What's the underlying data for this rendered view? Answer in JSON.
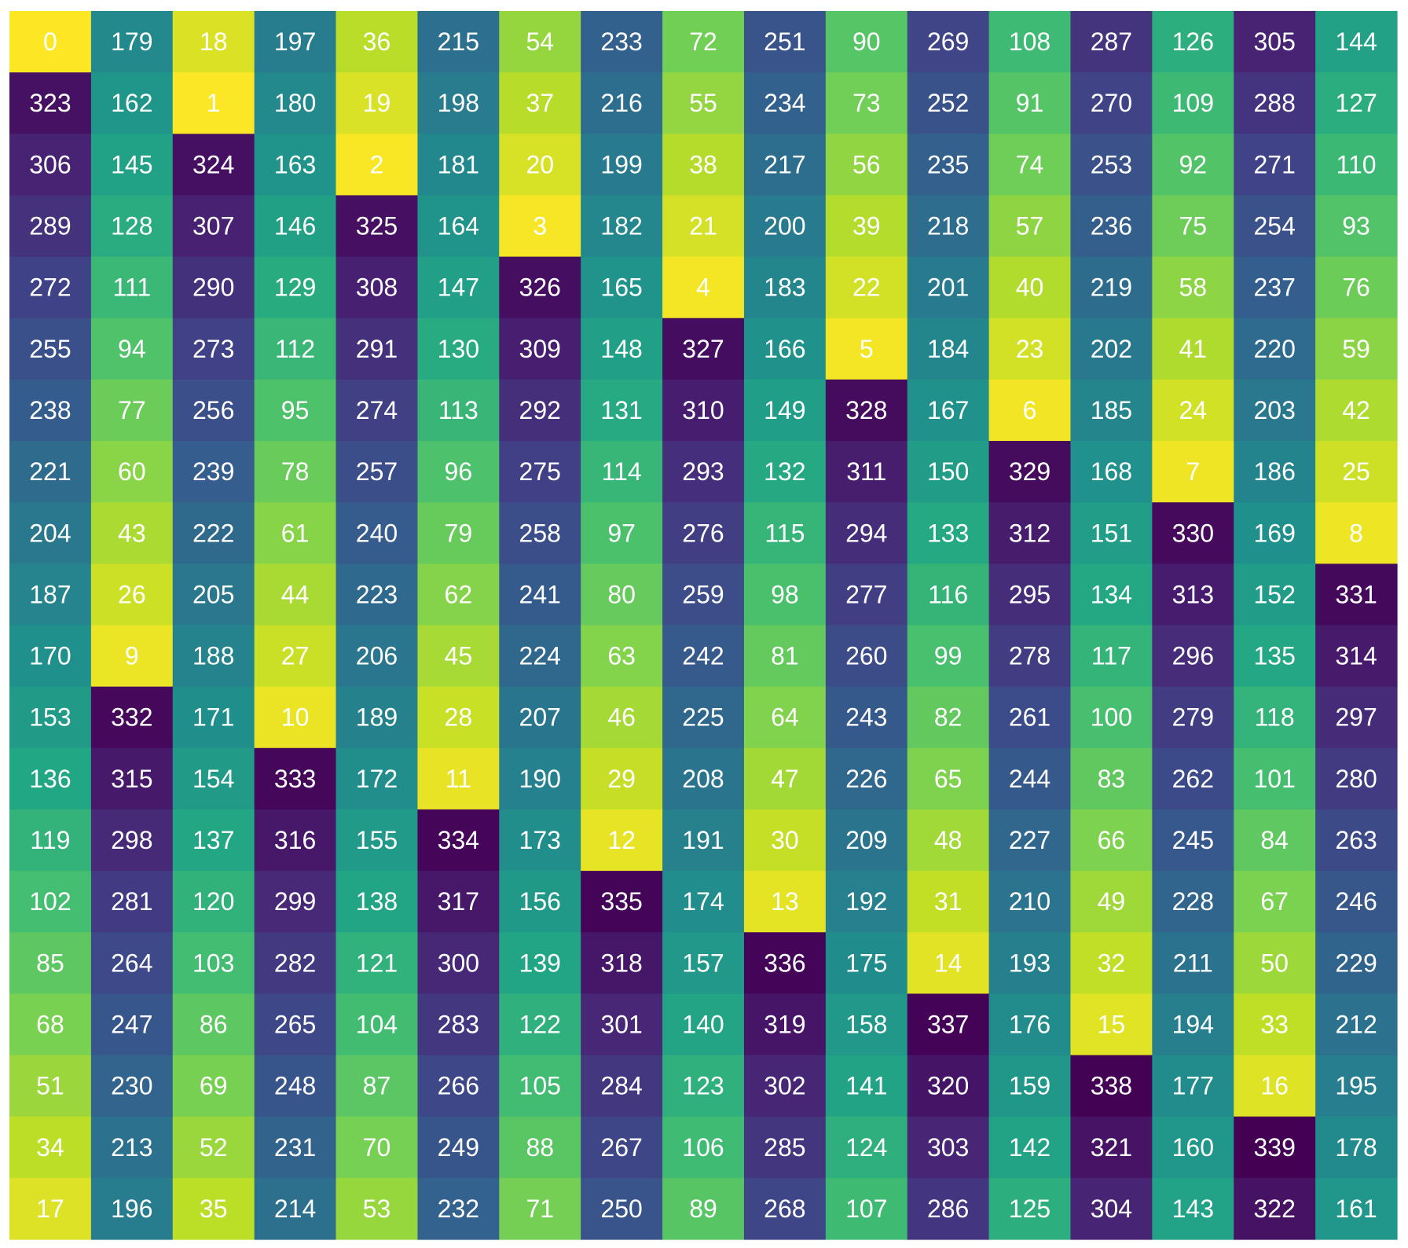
{
  "chart_data": {
    "type": "heatmap",
    "title": "",
    "xlabel": "",
    "ylabel": "",
    "colormap": "viridis_r",
    "value_range": [
      0,
      339
    ],
    "annotations": true,
    "grid": false,
    "legend": "none",
    "rows": 20,
    "cols": 17,
    "values": [
      [
        0,
        179,
        18,
        197,
        36,
        215,
        54,
        233,
        72,
        251,
        90,
        269,
        108,
        287,
        126,
        305,
        144
      ],
      [
        323,
        162,
        1,
        180,
        19,
        198,
        37,
        216,
        55,
        234,
        73,
        252,
        91,
        270,
        109,
        288,
        127
      ],
      [
        306,
        145,
        324,
        163,
        2,
        181,
        20,
        199,
        38,
        217,
        56,
        235,
        74,
        253,
        92,
        271,
        110
      ],
      [
        289,
        128,
        307,
        146,
        325,
        164,
        3,
        182,
        21,
        200,
        39,
        218,
        57,
        236,
        75,
        254,
        93
      ],
      [
        272,
        111,
        290,
        129,
        308,
        147,
        326,
        165,
        4,
        183,
        22,
        201,
        40,
        219,
        58,
        237,
        76
      ],
      [
        255,
        94,
        273,
        112,
        291,
        130,
        309,
        148,
        327,
        166,
        5,
        184,
        23,
        202,
        41,
        220,
        59
      ],
      [
        238,
        77,
        256,
        95,
        274,
        113,
        292,
        131,
        310,
        149,
        328,
        167,
        6,
        185,
        24,
        203,
        42
      ],
      [
        221,
        60,
        239,
        78,
        257,
        96,
        275,
        114,
        293,
        132,
        311,
        150,
        329,
        168,
        7,
        186,
        25
      ],
      [
        204,
        43,
        222,
        61,
        240,
        79,
        258,
        97,
        276,
        115,
        294,
        133,
        312,
        151,
        330,
        169,
        8
      ],
      [
        187,
        26,
        205,
        44,
        223,
        62,
        241,
        80,
        259,
        98,
        277,
        116,
        295,
        134,
        313,
        152,
        331
      ],
      [
        170,
        9,
        188,
        27,
        206,
        45,
        224,
        63,
        242,
        81,
        260,
        99,
        278,
        117,
        296,
        135,
        314
      ],
      [
        153,
        332,
        171,
        10,
        189,
        28,
        207,
        46,
        225,
        64,
        243,
        82,
        261,
        100,
        279,
        118,
        297
      ],
      [
        136,
        315,
        154,
        333,
        172,
        11,
        190,
        29,
        208,
        47,
        226,
        65,
        244,
        83,
        262,
        101,
        280
      ],
      [
        119,
        298,
        137,
        316,
        155,
        334,
        173,
        12,
        191,
        30,
        209,
        48,
        227,
        66,
        245,
        84,
        263
      ],
      [
        102,
        281,
        120,
        299,
        138,
        317,
        156,
        335,
        174,
        13,
        192,
        31,
        210,
        49,
        228,
        67,
        246
      ],
      [
        85,
        264,
        103,
        282,
        121,
        300,
        139,
        318,
        157,
        336,
        175,
        14,
        193,
        32,
        211,
        50,
        229
      ],
      [
        68,
        247,
        86,
        265,
        104,
        283,
        122,
        301,
        140,
        319,
        158,
        337,
        176,
        15,
        194,
        33,
        212
      ],
      [
        51,
        230,
        69,
        248,
        87,
        266,
        105,
        284,
        123,
        302,
        141,
        320,
        159,
        338,
        177,
        16,
        195
      ],
      [
        34,
        213,
        52,
        231,
        70,
        249,
        88,
        267,
        106,
        285,
        124,
        303,
        142,
        321,
        160,
        339,
        178
      ],
      [
        17,
        196,
        35,
        214,
        53,
        232,
        71,
        250,
        89,
        268,
        107,
        286,
        125,
        304,
        143,
        322,
        161
      ]
    ]
  }
}
